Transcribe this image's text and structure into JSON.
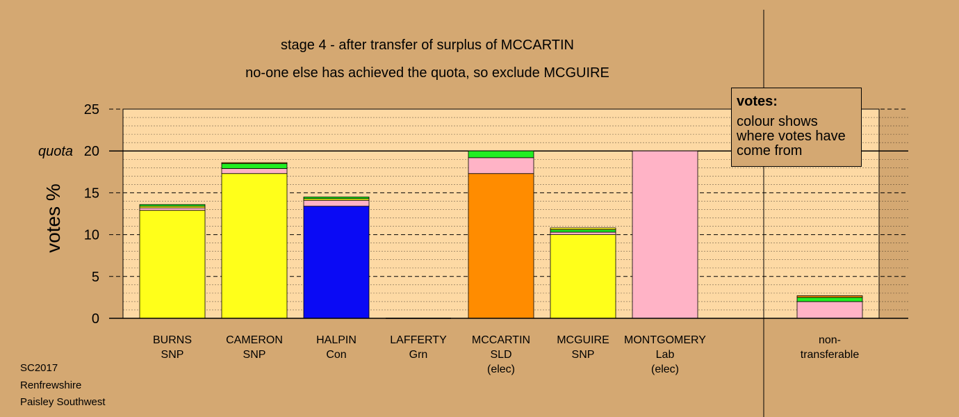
{
  "chart_data": {
    "type": "bar",
    "stacked": true,
    "title": "stage 4 - after transfer of surplus of MCCARTIN",
    "subtitle": "no-one else has achieved the quota, so exclude MCGUIRE",
    "ylabel": "votes %",
    "ylim": [
      0,
      25
    ],
    "yticks": [
      0,
      5,
      10,
      15,
      20,
      25
    ],
    "quota": 20,
    "quota_label": "quota",
    "grid": true,
    "categories": [
      {
        "lines": [
          "BURNS",
          "SNP"
        ]
      },
      {
        "lines": [
          "CAMERON",
          "SNP"
        ]
      },
      {
        "lines": [
          "HALPIN",
          "Con"
        ]
      },
      {
        "lines": [
          "LAFFERTY",
          "Grn"
        ]
      },
      {
        "lines": [
          "MCCARTIN",
          "SLD",
          "(elec)"
        ]
      },
      {
        "lines": [
          "MCGUIRE",
          "SNP"
        ]
      },
      {
        "lines": [
          "MONTGOMERY",
          "Lab",
          "(elec)"
        ]
      },
      {
        "lines": [
          "non-",
          "transferable"
        ]
      }
    ],
    "bars": [
      {
        "segments": [
          {
            "value": 12.9,
            "color": "#ffff1a"
          },
          {
            "value": 0.3,
            "color": "#ffb3c6"
          },
          {
            "value": 0.2,
            "color": "#ffff1a"
          },
          {
            "value": 0.2,
            "color": "#22ee22"
          }
        ]
      },
      {
        "segments": [
          {
            "value": 17.3,
            "color": "#ffff1a"
          },
          {
            "value": 0.6,
            "color": "#ffb3c6"
          },
          {
            "value": 0.6,
            "color": "#22ee22"
          },
          {
            "value": 0.1,
            "color": "#ff8c00"
          }
        ]
      },
      {
        "segments": [
          {
            "value": 13.4,
            "color": "#0a0af5"
          },
          {
            "value": 0.7,
            "color": "#ffb3c6"
          },
          {
            "value": 0.2,
            "color": "#ffff1a"
          },
          {
            "value": 0.2,
            "color": "#22ee22"
          }
        ]
      },
      {
        "segments": [
          {
            "value": 0,
            "color": "#22ee22"
          }
        ]
      },
      {
        "segments": [
          {
            "value": 17.3,
            "color": "#ff8c00"
          },
          {
            "value": 1.9,
            "color": "#ffb3c6"
          },
          {
            "value": 0.8,
            "color": "#22ee22"
          }
        ]
      },
      {
        "segments": [
          {
            "value": 10.0,
            "color": "#ffff1a"
          },
          {
            "value": 0.3,
            "color": "#ffb3c6"
          },
          {
            "value": 0.3,
            "color": "#22ee22"
          },
          {
            "value": 0.2,
            "color": "#ffff1a"
          }
        ]
      },
      {
        "segments": [
          {
            "value": 20.0,
            "color": "#ffb3c6"
          }
        ]
      },
      {
        "segments": [
          {
            "value": 2.0,
            "color": "#ffb3c6"
          },
          {
            "value": 0.5,
            "color": "#22ee22"
          },
          {
            "value": 0.2,
            "color": "#ff8c00"
          }
        ]
      }
    ],
    "legend": {
      "title": "votes:",
      "text": "colour shows where votes have come from",
      "placement": "top-right"
    }
  },
  "footer": {
    "line1": "SC2017",
    "line2": "Renfrewshire",
    "line3": "Paisley Southwest"
  },
  "colors": {
    "background": "#d4a872",
    "plot_area": "#fdd9a4"
  }
}
